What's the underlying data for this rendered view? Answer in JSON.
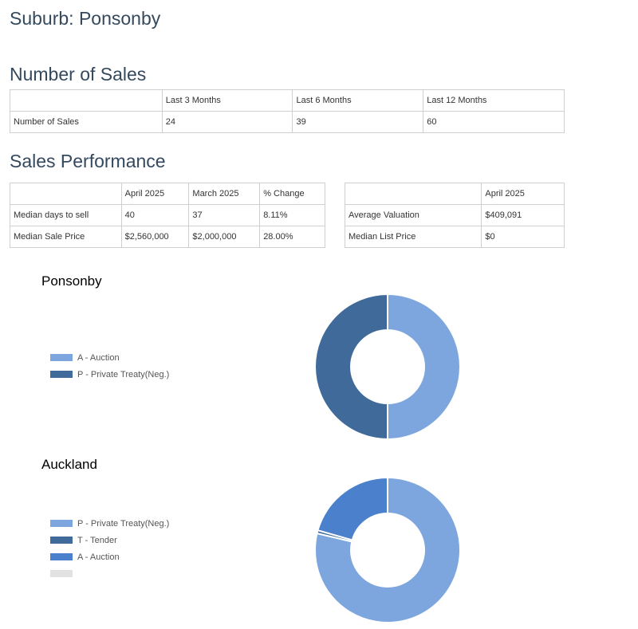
{
  "page_title": "Suburb: Ponsonby",
  "sections": {
    "sales_count_heading": "Number of Sales",
    "performance_heading": "Sales Performance"
  },
  "sales_table": {
    "headers": [
      "",
      "Last 3 Months",
      "Last 6 Months",
      "Last 12 Months"
    ],
    "rows": [
      [
        "Number of Sales",
        "24",
        "39",
        "60"
      ]
    ]
  },
  "performance_table": {
    "headers": [
      "",
      "April 2025",
      "March 2025",
      "% Change"
    ],
    "rows": [
      [
        "Median days to sell",
        "40",
        "37",
        "8.11%"
      ],
      [
        "Median Sale Price",
        "$2,560,000",
        "$2,000,000",
        "28.00%"
      ]
    ]
  },
  "valuation_table": {
    "headers": [
      "",
      "April 2025"
    ],
    "rows": [
      [
        "Average Valuation",
        "$409,091"
      ],
      [
        "Median List Price",
        "$0"
      ]
    ]
  },
  "chart_data": [
    {
      "type": "pie",
      "title": "Ponsonby",
      "legend_position": "left",
      "series": [
        {
          "name": "A - Auction",
          "value": 50,
          "color": "#7ea6de"
        },
        {
          "name": "P - Private Treaty(Neg.)",
          "value": 50,
          "color": "#3f6a9a"
        }
      ]
    },
    {
      "type": "pie",
      "title": "Auckland",
      "legend_position": "left",
      "series": [
        {
          "name": "P - Private Treaty(Neg.)",
          "value": 78.7,
          "color": "#7ea6de"
        },
        {
          "name": "T - Tender",
          "value": 0.7,
          "color": "#3f6a9a"
        },
        {
          "name": "A - Auction",
          "value": 20.6,
          "color": "#4a80cc"
        },
        {
          "name": "",
          "value": 0,
          "color": "#e2e2e2"
        }
      ]
    }
  ]
}
